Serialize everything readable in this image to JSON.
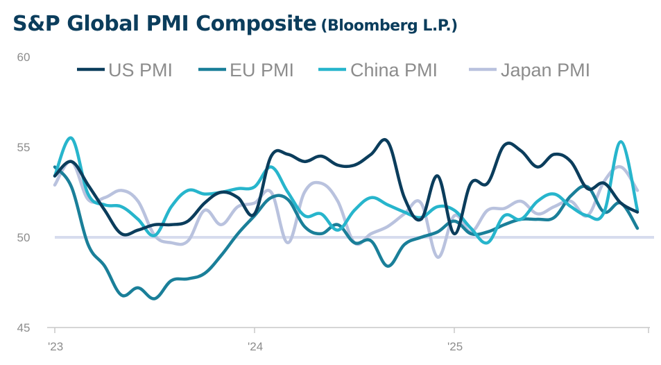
{
  "title": "S&P Global PMI Composite",
  "subtitle": "(Bloomberg L.P.)",
  "chart_data": {
    "type": "line",
    "title": "S&P Global PMI Composite (Bloomberg L.P.)",
    "xlabel": "",
    "ylabel": "",
    "ylim": [
      45,
      60
    ],
    "yticks": [
      45,
      50,
      55,
      60
    ],
    "xticks": [
      {
        "label": "'23",
        "index": 0
      },
      {
        "label": "'24",
        "index": 12
      },
      {
        "label": "'25",
        "index": 24
      }
    ],
    "reference_line": 50,
    "legend_position": "top",
    "series": [
      {
        "name": "US PMI",
        "color": "#0b3d5c",
        "values": [
          53.4,
          54.2,
          52.9,
          51.5,
          50.2,
          50.4,
          50.7,
          50.7,
          50.9,
          51.9,
          52.5,
          52.2,
          51.3,
          54.5,
          54.6,
          54.2,
          54.5,
          54.0,
          54.0,
          54.6,
          55.3,
          52.2,
          51.0,
          53.4,
          50.2,
          53.0,
          53.0,
          55.1,
          54.8,
          53.9,
          54.6,
          54.2,
          52.7,
          53.0,
          51.9,
          51.4
        ]
      },
      {
        "name": "EU PMI",
        "color": "#1a7f99",
        "values": [
          53.9,
          52.8,
          49.6,
          48.4,
          46.8,
          47.2,
          46.6,
          47.6,
          47.7,
          48.0,
          49.0,
          50.2,
          51.2,
          52.2,
          52.1,
          50.6,
          50.2,
          50.7,
          49.7,
          49.8,
          48.4,
          49.6,
          50.0,
          50.3,
          50.9,
          50.2,
          50.3,
          50.7,
          51.0,
          51.0,
          51.1,
          52.3,
          52.8,
          51.4,
          51.9,
          50.5
        ]
      },
      {
        "name": "China PMI",
        "color": "#27b5cc",
        "values": [
          53.4,
          55.5,
          52.4,
          51.8,
          51.7,
          51.0,
          50.1,
          51.7,
          52.6,
          52.4,
          52.5,
          52.7,
          52.8,
          53.9,
          52.5,
          51.2,
          51.3,
          50.4,
          51.5,
          52.2,
          51.8,
          51.4,
          51.1,
          51.7,
          51.5,
          50.5,
          49.7,
          51.2,
          51.0,
          52.0,
          52.4,
          51.7,
          51.2,
          51.4,
          55.3,
          51.5
        ]
      },
      {
        "name": "Japan PMI",
        "color": "#b9c2de",
        "values": [
          52.9,
          54.2,
          52.1,
          52.2,
          52.6,
          52.0,
          50.1,
          49.7,
          49.8,
          51.5,
          50.7,
          51.7,
          51.9,
          52.5,
          49.7,
          52.5,
          53.0,
          52.0,
          49.7,
          50.2,
          50.6,
          51.3,
          51.9,
          48.9,
          51.2,
          50.3,
          51.5,
          51.6,
          52.0,
          51.3,
          51.7,
          52.0,
          51.2,
          53.1,
          53.9,
          52.6
        ]
      }
    ]
  }
}
